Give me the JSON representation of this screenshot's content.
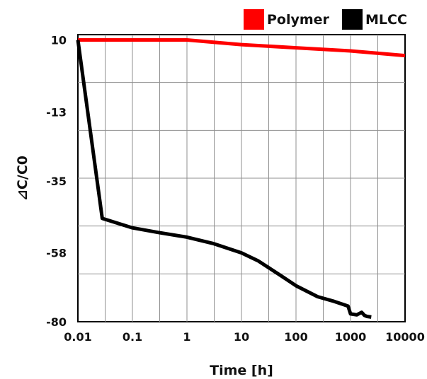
{
  "chart_data": {
    "type": "line",
    "title": "",
    "xlabel": "Time [h]",
    "ylabel": "⊿C/C0",
    "x_scale": "log",
    "xlim": [
      0.01,
      10000
    ],
    "ylim": [
      -80,
      10
    ],
    "x_ticks": [
      "0.01",
      "0.1",
      "1",
      "10",
      "100",
      "1000",
      "10000"
    ],
    "x_tick_values": [
      0.01,
      0.1,
      1,
      10,
      100,
      1000,
      10000
    ],
    "y_ticks": [
      "10",
      "-13",
      "-35",
      "-58",
      "-80"
    ],
    "y_tick_values": [
      10,
      -13,
      -35,
      -58,
      -80
    ],
    "grid": true,
    "legend_position": "top-right",
    "series": [
      {
        "name": "Polymer",
        "color": "#ff0000",
        "x": [
          0.01,
          0.1,
          1,
          10,
          100,
          1000,
          10000
        ],
        "y": [
          10,
          10,
          10,
          8.5,
          7.5,
          6.5,
          5
        ]
      },
      {
        "name": "MLCC",
        "color": "#000000",
        "x": [
          0.01,
          0.028,
          0.1,
          0.3,
          1,
          3,
          10,
          20,
          50,
          100,
          250,
          500,
          900,
          1000,
          1300,
          1600,
          1800,
          2000,
          2400
        ],
        "y": [
          10,
          -47,
          -50,
          -51.5,
          -53,
          -55,
          -58,
          -60.5,
          -65,
          -68.5,
          -72,
          -73.5,
          -75,
          -77.5,
          -77.8,
          -77,
          -78,
          -78.3,
          -78.5
        ]
      }
    ]
  }
}
